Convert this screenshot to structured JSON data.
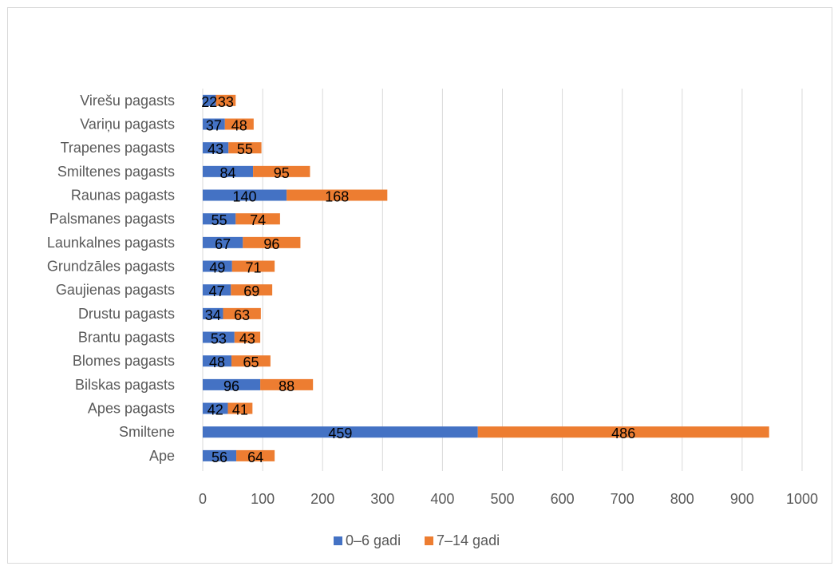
{
  "chart_data": {
    "type": "bar",
    "orientation": "horizontal",
    "stacked": true,
    "categories": [
      "Ape",
      "Smiltene",
      "Apes pagasts",
      "Bilskas pagasts",
      "Blomes pagasts",
      "Brantu pagasts",
      "Drustu pagasts",
      "Gaujienas pagasts",
      "Grundzāles pagasts",
      "Launkalnes pagasts",
      "Palsmanes pagasts",
      "Raunas pagasts",
      "Smiltenes pagasts",
      "Trapenes pagasts",
      "Variņu pagasts",
      "Virešu pagasts"
    ],
    "series": [
      {
        "name": "0–6 gadi",
        "color": "#4472c4",
        "values": [
          56,
          459,
          42,
          96,
          48,
          53,
          34,
          47,
          49,
          67,
          55,
          140,
          84,
          43,
          37,
          22
        ]
      },
      {
        "name": "7–14 gadi",
        "color": "#ed7d31",
        "values": [
          64,
          486,
          41,
          88,
          65,
          43,
          63,
          69,
          71,
          96,
          74,
          168,
          95,
          55,
          48,
          33
        ]
      }
    ],
    "xlim": [
      0,
      1000
    ],
    "xticks": [
      0,
      100,
      200,
      300,
      400,
      500,
      600,
      700,
      800,
      900,
      1000
    ],
    "grid": true,
    "legend_position": "bottom",
    "data_labels": true
  }
}
